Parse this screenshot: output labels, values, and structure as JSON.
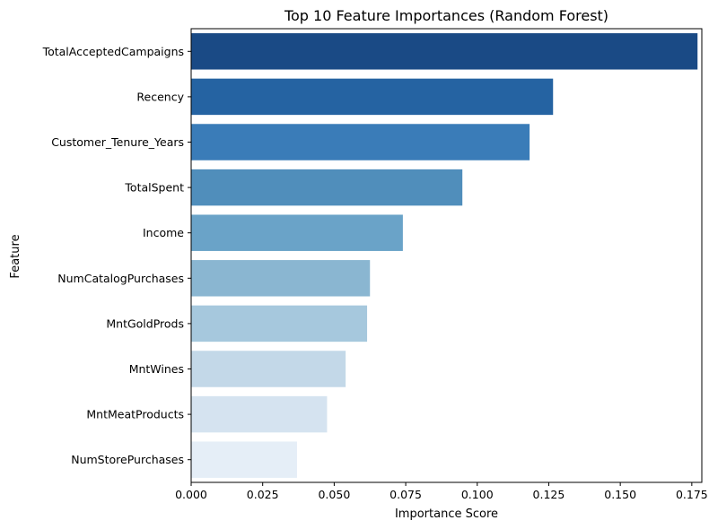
{
  "chart_data": {
    "type": "bar",
    "orientation": "horizontal",
    "title": "Top 10 Feature Importances (Random Forest)",
    "xlabel": "Importance Score",
    "ylabel": "Feature",
    "xlim": [
      0,
      0.1785
    ],
    "xticks": [
      "0.000",
      "0.025",
      "0.050",
      "0.075",
      "0.100",
      "0.125",
      "0.150",
      "0.175"
    ],
    "xtick_values": [
      0,
      0.025,
      0.05,
      0.075,
      0.1,
      0.125,
      0.15,
      0.175
    ],
    "grid": false,
    "categories": [
      "TotalAcceptedCampaigns",
      "Recency",
      "Customer_Tenure_Years",
      "TotalSpent",
      "Income",
      "NumCatalogPurchases",
      "MntGoldProds",
      "MntWines",
      "MntMeatProducts",
      "NumStorePurchases"
    ],
    "values": [
      0.177,
      0.1265,
      0.1183,
      0.0948,
      0.074,
      0.0625,
      0.0615,
      0.054,
      0.0475,
      0.037
    ],
    "colors": [
      "#1a4a85",
      "#2563a2",
      "#3a7cb8",
      "#508ebb",
      "#6aa3c8",
      "#8ab6d1",
      "#a6c8dd",
      "#c3d8e8",
      "#d5e3f0",
      "#e5eef7"
    ]
  }
}
